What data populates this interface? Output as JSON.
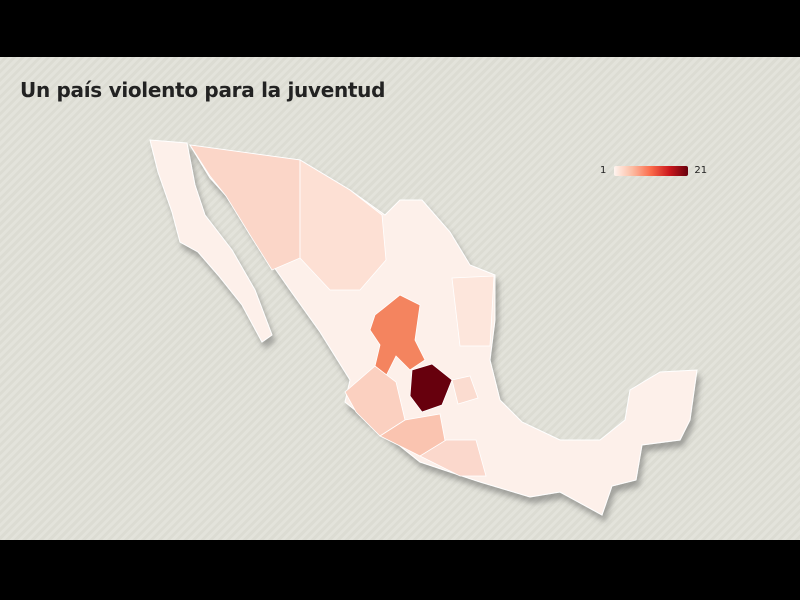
{
  "title": "Un país violento para la juventud",
  "legend": {
    "min": "1",
    "max": "21",
    "color_min": "#fff5f0",
    "color_max": "#67000d"
  },
  "map": {
    "type": "choropleth",
    "region": "Mexico",
    "base_color": "#fdf0ea",
    "states": [
      {
        "name": "Sonora",
        "value": 4,
        "color": "#fbd6c8"
      },
      {
        "name": "Chihuahua",
        "value": 3,
        "color": "#fde0d4"
      },
      {
        "name": "Zacatecas",
        "value": 11,
        "color": "#f4845f"
      },
      {
        "name": "Guanajuato",
        "value": 21,
        "color": "#67000d"
      },
      {
        "name": "Jalisco",
        "value": 4,
        "color": "#fbd0c0"
      },
      {
        "name": "Michoacán",
        "value": 5,
        "color": "#fac4b0"
      },
      {
        "name": "Guerrero",
        "value": 3,
        "color": "#fbd8cc"
      },
      {
        "name": "Tamaulipas",
        "value": 2,
        "color": "#fde6dc"
      },
      {
        "name": "Querétaro",
        "value": 3,
        "color": "#fbdcd0"
      }
    ]
  }
}
